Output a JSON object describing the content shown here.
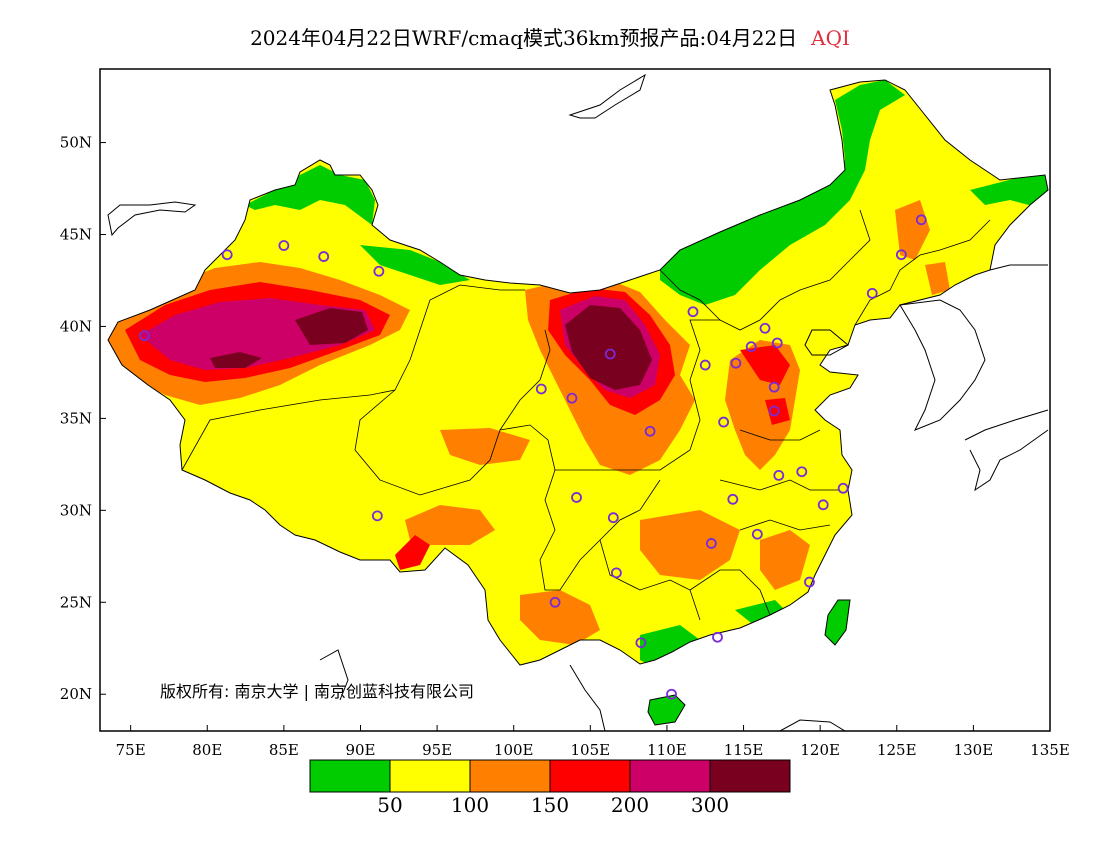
{
  "title": {
    "text": "2024年04月22日WRF/cmaq模式36km预报产品:04月22日",
    "variable": "AQI",
    "variable_color": "#e03040"
  },
  "map": {
    "lon_range": [
      73,
      135
    ],
    "lat_range": [
      18,
      54
    ],
    "x_ticks": [
      {
        "value": 75,
        "label": "75E"
      },
      {
        "value": 80,
        "label": "80E"
      },
      {
        "value": 85,
        "label": "85E"
      },
      {
        "value": 90,
        "label": "90E"
      },
      {
        "value": 95,
        "label": "95E"
      },
      {
        "value": 100,
        "label": "100E"
      },
      {
        "value": 105,
        "label": "105E"
      },
      {
        "value": 110,
        "label": "110E"
      },
      {
        "value": 115,
        "label": "115E"
      },
      {
        "value": 120,
        "label": "120E"
      },
      {
        "value": 125,
        "label": "125E"
      },
      {
        "value": 130,
        "label": "130E"
      },
      {
        "value": 135,
        "label": "135E"
      }
    ],
    "y_ticks": [
      {
        "value": 20,
        "label": "20N"
      },
      {
        "value": 25,
        "label": "25N"
      },
      {
        "value": 30,
        "label": "30N"
      },
      {
        "value": 35,
        "label": "35N"
      },
      {
        "value": 40,
        "label": "40N"
      },
      {
        "value": 45,
        "label": "45N"
      },
      {
        "value": 50,
        "label": "50N"
      }
    ],
    "copyright": "版权所有: 南京大学 | 南京创蓝科技有限公司"
  },
  "legend": {
    "colors": [
      "#00cc00",
      "#ffff00",
      "#ff8000",
      "#ff0000",
      "#cc0066",
      "#7a0020"
    ],
    "labels": [
      "50",
      "100",
      "150",
      "200",
      "300"
    ]
  },
  "stations": [
    {
      "lon": 85.0,
      "lat": 44.4
    },
    {
      "lon": 87.6,
      "lat": 43.8
    },
    {
      "lon": 91.2,
      "lat": 43.0
    },
    {
      "lon": 75.9,
      "lat": 39.5
    },
    {
      "lon": 81.3,
      "lat": 43.9
    },
    {
      "lon": 91.1,
      "lat": 29.7
    },
    {
      "lon": 101.8,
      "lat": 36.6
    },
    {
      "lon": 103.8,
      "lat": 36.1
    },
    {
      "lon": 106.3,
      "lat": 38.5
    },
    {
      "lon": 111.7,
      "lat": 40.8
    },
    {
      "lon": 112.5,
      "lat": 37.9
    },
    {
      "lon": 114.5,
      "lat": 38.0
    },
    {
      "lon": 116.4,
      "lat": 39.9
    },
    {
      "lon": 117.2,
      "lat": 39.1
    },
    {
      "lon": 115.5,
      "lat": 38.9
    },
    {
      "lon": 117.0,
      "lat": 36.7
    },
    {
      "lon": 113.7,
      "lat": 34.8
    },
    {
      "lon": 108.9,
      "lat": 34.3
    },
    {
      "lon": 123.4,
      "lat": 41.8
    },
    {
      "lon": 125.3,
      "lat": 43.9
    },
    {
      "lon": 126.6,
      "lat": 45.8
    },
    {
      "lon": 104.1,
      "lat": 30.7
    },
    {
      "lon": 106.5,
      "lat": 29.6
    },
    {
      "lon": 106.7,
      "lat": 26.6
    },
    {
      "lon": 102.7,
      "lat": 25.0
    },
    {
      "lon": 108.3,
      "lat": 22.8
    },
    {
      "lon": 113.3,
      "lat": 23.1
    },
    {
      "lon": 110.3,
      "lat": 20.0
    },
    {
      "lon": 112.9,
      "lat": 28.2
    },
    {
      "lon": 114.3,
      "lat": 30.6
    },
    {
      "lon": 115.9,
      "lat": 28.7
    },
    {
      "lon": 117.3,
      "lat": 31.9
    },
    {
      "lon": 118.8,
      "lat": 32.1
    },
    {
      "lon": 121.5,
      "lat": 31.2
    },
    {
      "lon": 120.2,
      "lat": 30.3
    },
    {
      "lon": 119.3,
      "lat": 26.1
    },
    {
      "lon": 117.0,
      "lat": 35.4
    }
  ]
}
